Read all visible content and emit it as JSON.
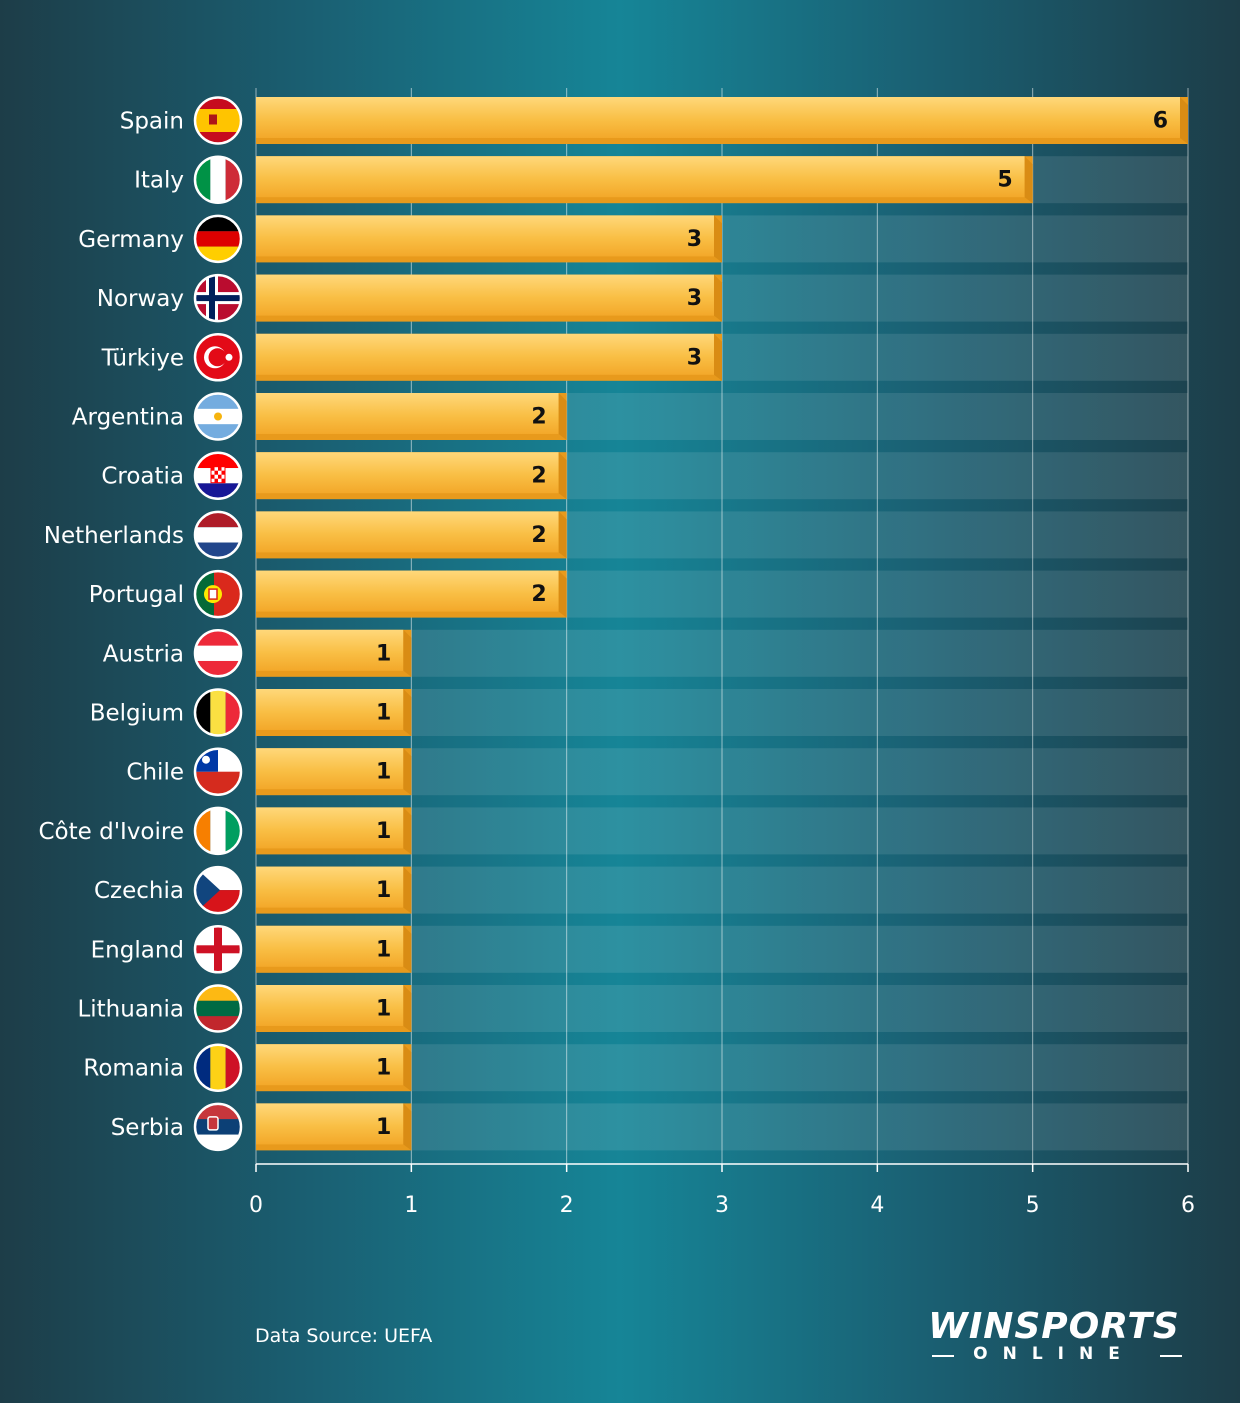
{
  "chart_data": {
    "type": "bar",
    "orientation": "horizontal",
    "title": "",
    "xlabel": "",
    "ylabel": "",
    "categories": [
      "Spain",
      "Italy",
      "Germany",
      "Norway",
      "Türkiye",
      "Argentina",
      "Croatia",
      "Netherlands",
      "Portugal",
      "Austria",
      "Belgium",
      "Chile",
      "Côte d'Ivoire",
      "Czechia",
      "England",
      "Lithuania",
      "Romania",
      "Serbia"
    ],
    "values": [
      6,
      5,
      3,
      3,
      3,
      2,
      2,
      2,
      2,
      1,
      1,
      1,
      1,
      1,
      1,
      1,
      1,
      1
    ],
    "xlim": [
      0,
      6
    ],
    "xticks": [
      "0",
      "1",
      "2",
      "3",
      "4",
      "5",
      "6"
    ],
    "grid": true,
    "bar_color": "#f7b738",
    "flag_icons": [
      "spain-flag-icon",
      "italy-flag-icon",
      "germany-flag-icon",
      "norway-flag-icon",
      "turkiye-flag-icon",
      "argentina-flag-icon",
      "croatia-flag-icon",
      "netherlands-flag-icon",
      "portugal-flag-icon",
      "austria-flag-icon",
      "belgium-flag-icon",
      "chile-flag-icon",
      "cote-divoire-flag-icon",
      "czechia-flag-icon",
      "england-flag-icon",
      "lithuania-flag-icon",
      "romania-flag-icon",
      "serbia-flag-icon"
    ]
  },
  "source": "Data Source: UEFA",
  "logo": {
    "main": "WINSPORTS",
    "sub": "ONLINE"
  }
}
